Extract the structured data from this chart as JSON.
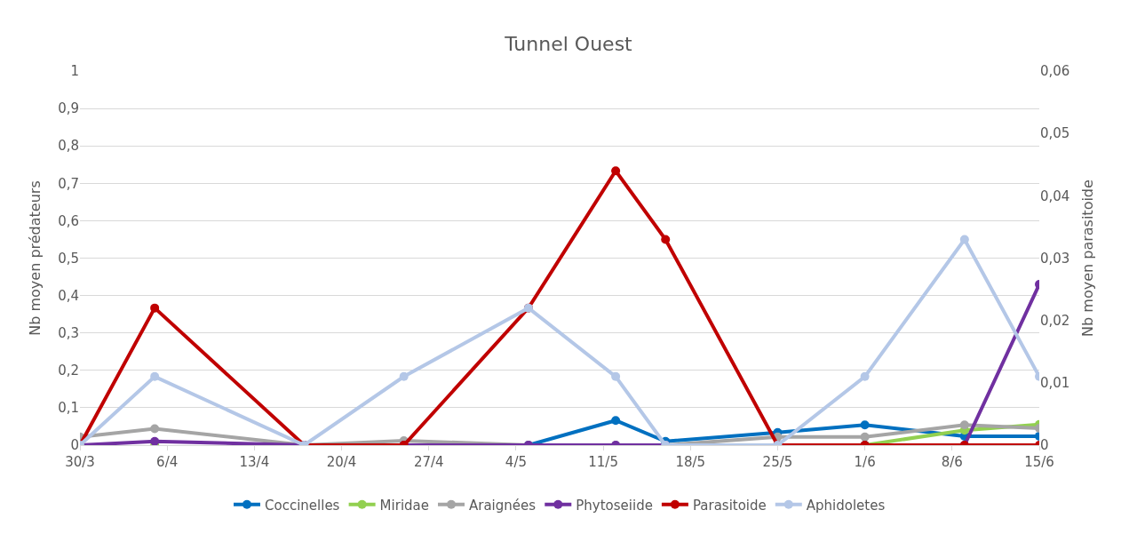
{
  "chart_data": {
    "type": "line",
    "title": "Tunnel Ouest",
    "ylabel": "Nb moyen prédateurs",
    "y2label": "Nb moyen parasitoide",
    "x": [
      "--03-30",
      "--04-05",
      "--04-17",
      "--04-25",
      "--05-05",
      "--05-12",
      "--05-16",
      "--05-25",
      "--06-01",
      "--06-09",
      "--06-15"
    ],
    "series": [
      {
        "name": "Coccinelles",
        "color": "#0070c0",
        "values": [
          null,
          null,
          null,
          0,
          0,
          0.066,
          0.01,
          0.034,
          0.054,
          0.024,
          0.024
        ]
      },
      {
        "name": "Miridae",
        "color": "#92d050",
        "values": [
          null,
          0,
          null,
          null,
          null,
          null,
          null,
          null,
          0,
          0.04,
          0.055
        ]
      },
      {
        "name": "Araignées",
        "color": "#a5a5a5",
        "values": [
          0.022,
          0.044,
          0,
          0.012,
          0,
          0,
          0,
          0.022,
          0.022,
          0.054,
          0.045
        ]
      },
      {
        "name": "Phytoseiide",
        "color": "#7030a0",
        "values": [
          0,
          0.01,
          0,
          0,
          0,
          0,
          0,
          0,
          0,
          0,
          0.43
        ]
      },
      {
        "name": "Parasitoide",
        "color": "#c00000",
        "axis": "y2",
        "values": [
          0,
          0.022,
          0,
          0,
          0.022,
          0.044,
          0.033,
          0,
          0,
          0,
          0
        ]
      },
      {
        "name": "Aphidoletes",
        "color": "#b4c7e7",
        "axis": "y2",
        "values": [
          0,
          0.011,
          0,
          0.011,
          0.022,
          0.011,
          0,
          0,
          0.011,
          0.033,
          0.011
        ]
      }
    ],
    "xlim": [
      "--03-30",
      "--06-15"
    ],
    "xticks": [
      {
        "value": "--03-30",
        "label": "30/3"
      },
      {
        "value": "--04-06",
        "label": "6/4"
      },
      {
        "value": "--04-13",
        "label": "13/4"
      },
      {
        "value": "--04-20",
        "label": "20/4"
      },
      {
        "value": "--04-27",
        "label": "27/4"
      },
      {
        "value": "--05-04",
        "label": "4/5"
      },
      {
        "value": "--05-11",
        "label": "11/5"
      },
      {
        "value": "--05-18",
        "label": "18/5"
      },
      {
        "value": "--05-25",
        "label": "25/5"
      },
      {
        "value": "--06-01",
        "label": "1/6"
      },
      {
        "value": "--06-08",
        "label": "8/6"
      },
      {
        "value": "--06-15",
        "label": "15/6"
      }
    ],
    "ylim": [
      0,
      1
    ],
    "yticks": [
      0,
      {
        "value": 0.1,
        "label": "0,1"
      },
      {
        "value": 0.2,
        "label": "0,2"
      },
      {
        "value": 0.3,
        "label": "0,3"
      },
      {
        "value": 0.4,
        "label": "0,4"
      },
      {
        "value": 0.5,
        "label": "0,5"
      },
      {
        "value": 0.6,
        "label": "0,6"
      },
      {
        "value": 0.7,
        "label": "0,7"
      },
      {
        "value": 0.8,
        "label": "0,8"
      },
      {
        "value": 0.9,
        "label": "0,9"
      },
      1
    ],
    "y2lim": [
      0,
      0.06
    ],
    "y2ticks": [
      0,
      {
        "value": 0.01,
        "label": "0,01"
      },
      {
        "value": 0.02,
        "label": "0,02"
      },
      {
        "value": 0.03,
        "label": "0,03"
      },
      {
        "value": 0.04,
        "label": "0,04"
      },
      {
        "value": 0.05,
        "label": "0,05"
      },
      {
        "value": 0.06,
        "label": "0,06"
      }
    ],
    "grid": "y",
    "legend": "bottom",
    "marker": "circle",
    "line_style": "solid"
  }
}
